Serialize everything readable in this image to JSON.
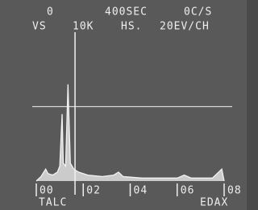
{
  "chart_data": {
    "type": "area",
    "header": [
      [
        "0",
        "400SEC",
        "0C/S"
      ],
      [
        "VS",
        "10K",
        "HS.",
        "20EV/CH"
      ]
    ],
    "sample": "TALC",
    "brand": "EDAX",
    "x": [
      0,
      0.2,
      0.4,
      0.5,
      0.7,
      0.9,
      1.0,
      1.1,
      1.15,
      1.25,
      1.35,
      1.45,
      1.6,
      1.8,
      2.2,
      2.8,
      3.3,
      3.5,
      3.7,
      4.5,
      5.5,
      6.0,
      6.3,
      6.6,
      7.5,
      7.9,
      8.0
    ],
    "values": [
      0,
      3,
      8,
      5,
      4,
      6,
      10,
      45,
      12,
      10,
      65,
      12,
      8,
      6,
      4,
      3,
      4,
      6,
      3,
      2,
      2,
      2,
      4,
      2,
      2,
      8,
      0
    ],
    "color": "#f2f2f2",
    "xlim": [
      0,
      8
    ],
    "ylim": [
      0,
      100
    ],
    "xticks": [
      {
        "value": 0,
        "label": "00"
      },
      {
        "value": 2,
        "label": "02"
      },
      {
        "value": 4,
        "label": "04"
      },
      {
        "value": 6,
        "label": "06"
      },
      {
        "value": 8,
        "label": "08"
      }
    ],
    "cursor": 1.65,
    "marker_level": 50
  }
}
